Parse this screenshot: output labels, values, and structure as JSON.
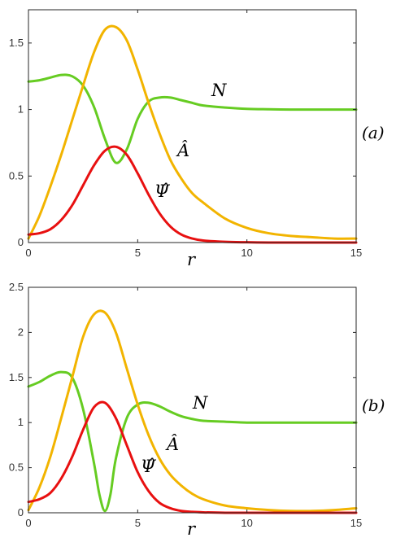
{
  "colors": {
    "N": "#66cc22",
    "A": "#f2b400",
    "Psi": "#e81010"
  },
  "chart_data": [
    {
      "type": "line",
      "panel_label": "(a)",
      "xlabel": "r",
      "xlim": [
        0,
        15
      ],
      "ylim": [
        0,
        1.75
      ],
      "xticks": [
        "0",
        "5",
        "10",
        "15"
      ],
      "yticks": [
        "0",
        "0.5",
        "1",
        "1.5"
      ],
      "curve_labels": {
        "N": "N",
        "A": "Â",
        "Psi": "Ψ̂"
      },
      "series": [
        {
          "key": "N",
          "x": [
            0,
            0.5,
            1,
            1.5,
            2,
            2.5,
            3,
            3.5,
            4,
            4.5,
            5,
            5.5,
            6,
            6.5,
            7,
            7.5,
            8,
            9,
            10,
            11,
            12,
            13,
            14,
            15
          ],
          "y": [
            1.21,
            1.22,
            1.24,
            1.26,
            1.25,
            1.18,
            1.02,
            0.78,
            0.6,
            0.7,
            0.93,
            1.06,
            1.09,
            1.09,
            1.07,
            1.05,
            1.03,
            1.015,
            1.005,
            1.002,
            1.0,
            1.0,
            1.0,
            1.0
          ]
        },
        {
          "key": "A",
          "x": [
            0,
            0.5,
            1,
            1.5,
            2,
            2.5,
            3,
            3.5,
            4,
            4.5,
            5,
            5.5,
            6,
            6.5,
            7,
            7.5,
            8,
            9,
            10,
            11,
            12,
            13,
            14,
            15
          ],
          "y": [
            0.03,
            0.2,
            0.42,
            0.66,
            0.92,
            1.18,
            1.43,
            1.6,
            1.62,
            1.52,
            1.3,
            1.05,
            0.82,
            0.62,
            0.48,
            0.37,
            0.3,
            0.18,
            0.11,
            0.07,
            0.05,
            0.04,
            0.03,
            0.03
          ]
        },
        {
          "key": "Psi",
          "x": [
            0,
            0.5,
            1,
            1.5,
            2,
            2.5,
            3,
            3.5,
            4,
            4.5,
            5,
            5.5,
            6,
            6.5,
            7,
            7.5,
            8,
            9,
            10,
            11,
            12,
            13,
            14,
            15
          ],
          "y": [
            0.06,
            0.07,
            0.1,
            0.17,
            0.28,
            0.43,
            0.58,
            0.69,
            0.72,
            0.66,
            0.52,
            0.36,
            0.22,
            0.12,
            0.06,
            0.03,
            0.015,
            0.005,
            0.002,
            0.0,
            0.0,
            0.0,
            0.0,
            0.0
          ]
        }
      ]
    },
    {
      "type": "line",
      "panel_label": "(b)",
      "xlabel": "r",
      "xlim": [
        0,
        15
      ],
      "ylim": [
        0,
        2.5
      ],
      "xticks": [
        "0",
        "5",
        "10",
        "15"
      ],
      "yticks": [
        "0",
        "0.5",
        "1",
        "1.5",
        "2",
        "2.5"
      ],
      "curve_labels": {
        "N": "N",
        "A": "Â",
        "Psi": "Ψ̂"
      },
      "series": [
        {
          "key": "N",
          "x": [
            0,
            0.5,
            1,
            1.5,
            2,
            2.5,
            3,
            3.25,
            3.5,
            3.75,
            4,
            4.5,
            5,
            5.5,
            6,
            6.5,
            7,
            7.5,
            8,
            9,
            10,
            11,
            12,
            13,
            14,
            15
          ],
          "y": [
            1.4,
            1.45,
            1.52,
            1.56,
            1.5,
            1.15,
            0.55,
            0.2,
            0.02,
            0.2,
            0.6,
            1.05,
            1.2,
            1.22,
            1.18,
            1.12,
            1.07,
            1.04,
            1.02,
            1.01,
            1.0,
            1.0,
            1.0,
            1.0,
            1.0,
            1.0
          ]
        },
        {
          "key": "A",
          "x": [
            0,
            0.5,
            1,
            1.5,
            2,
            2.5,
            3,
            3.5,
            4,
            4.5,
            5,
            5.5,
            6,
            6.5,
            7,
            7.5,
            8,
            9,
            10,
            11,
            12,
            13,
            14,
            15
          ],
          "y": [
            0.03,
            0.28,
            0.62,
            1.05,
            1.5,
            1.95,
            2.2,
            2.22,
            2.0,
            1.6,
            1.2,
            0.86,
            0.6,
            0.42,
            0.3,
            0.21,
            0.15,
            0.08,
            0.05,
            0.03,
            0.02,
            0.02,
            0.03,
            0.05
          ]
        },
        {
          "key": "Psi",
          "x": [
            0,
            0.5,
            1,
            1.5,
            2,
            2.5,
            3,
            3.5,
            4,
            4.5,
            5,
            5.5,
            6,
            6.5,
            7,
            7.5,
            8,
            9,
            10,
            11,
            12,
            13,
            14,
            15
          ],
          "y": [
            0.12,
            0.15,
            0.22,
            0.38,
            0.62,
            0.92,
            1.17,
            1.22,
            1.05,
            0.75,
            0.45,
            0.24,
            0.11,
            0.05,
            0.02,
            0.01,
            0.005,
            0.0,
            0.0,
            0.0,
            0.0,
            0.0,
            0.0,
            0.0
          ]
        }
      ]
    }
  ]
}
